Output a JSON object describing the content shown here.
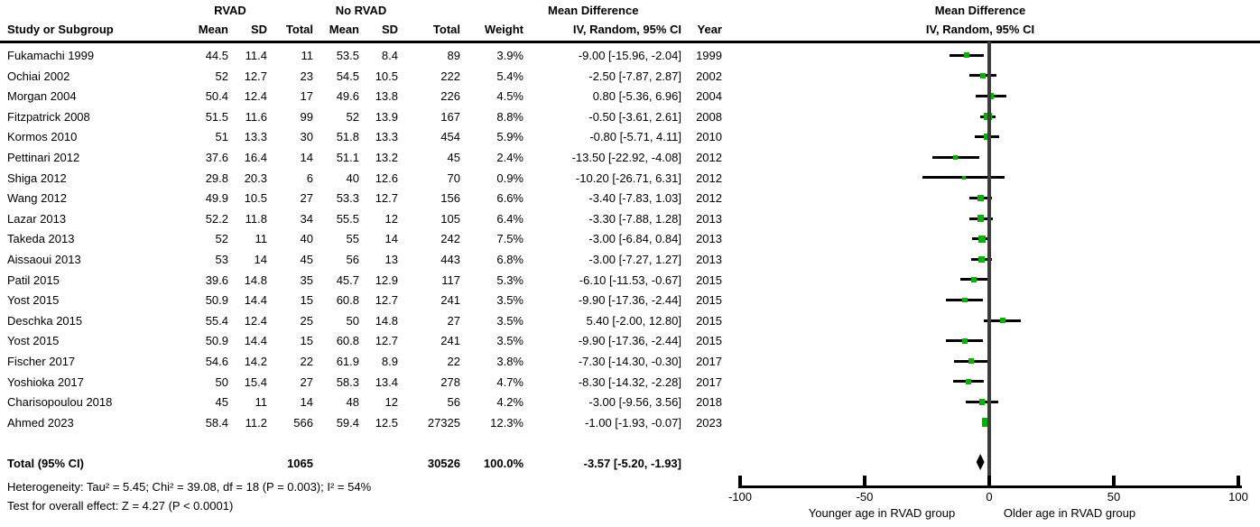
{
  "table": {
    "group1_header": "RVAD",
    "group2_header": "No RVAD",
    "effect_header_line1": "Mean Difference",
    "effect_header_line2": "IV, Random, 95% CI",
    "columns": {
      "study": "Study or Subgroup",
      "mean": "Mean",
      "sd": "SD",
      "total": "Total",
      "weight": "Weight",
      "ci": "IV, Random, 95% CI",
      "year": "Year"
    },
    "rows": [
      {
        "study": "Fukamachi 1999",
        "mean1": "44.5",
        "sd1": "11.4",
        "total1": "11",
        "mean2": "53.5",
        "sd2": "8.4",
        "total2": "89",
        "weight": "3.9%",
        "ci": "-9.00 [-15.96, -2.04]",
        "year": "1999",
        "est": -9.0,
        "lo": -15.96,
        "hi": -2.04,
        "weight_val": 3.9
      },
      {
        "study": "Ochiai 2002",
        "mean1": "52",
        "sd1": "12.7",
        "total1": "23",
        "mean2": "54.5",
        "sd2": "10.5",
        "total2": "222",
        "weight": "5.4%",
        "ci": "-2.50 [-7.87, 2.87]",
        "year": "2002",
        "est": -2.5,
        "lo": -7.87,
        "hi": 2.87,
        "weight_val": 5.4
      },
      {
        "study": "Morgan 2004",
        "mean1": "50.4",
        "sd1": "12.4",
        "total1": "17",
        "mean2": "49.6",
        "sd2": "13.8",
        "total2": "226",
        "weight": "4.5%",
        "ci": "0.80 [-5.36, 6.96]",
        "year": "2004",
        "est": 0.8,
        "lo": -5.36,
        "hi": 6.96,
        "weight_val": 4.5
      },
      {
        "study": "Fitzpatrick 2008",
        "mean1": "51.5",
        "sd1": "11.6",
        "total1": "99",
        "mean2": "52",
        "sd2": "13.9",
        "total2": "167",
        "weight": "8.8%",
        "ci": "-0.50 [-3.61, 2.61]",
        "year": "2008",
        "est": -0.5,
        "lo": -3.61,
        "hi": 2.61,
        "weight_val": 8.8
      },
      {
        "study": "Kormos 2010",
        "mean1": "51",
        "sd1": "13.3",
        "total1": "30",
        "mean2": "51.8",
        "sd2": "13.3",
        "total2": "454",
        "weight": "5.9%",
        "ci": "-0.80 [-5.71, 4.11]",
        "year": "2010",
        "est": -0.8,
        "lo": -5.71,
        "hi": 4.11,
        "weight_val": 5.9
      },
      {
        "study": "Pettinari 2012",
        "mean1": "37.6",
        "sd1": "16.4",
        "total1": "14",
        "mean2": "51.1",
        "sd2": "13.2",
        "total2": "45",
        "weight": "2.4%",
        "ci": "-13.50 [-22.92, -4.08]",
        "year": "2012",
        "est": -13.5,
        "lo": -22.92,
        "hi": -4.08,
        "weight_val": 2.4
      },
      {
        "study": "Shiga 2012",
        "mean1": "29.8",
        "sd1": "20.3",
        "total1": "6",
        "mean2": "40",
        "sd2": "12.6",
        "total2": "70",
        "weight": "0.9%",
        "ci": "-10.20 [-26.71, 6.31]",
        "year": "2012",
        "est": -10.2,
        "lo": -26.71,
        "hi": 6.31,
        "weight_val": 0.9
      },
      {
        "study": "Wang 2012",
        "mean1": "49.9",
        "sd1": "10.5",
        "total1": "27",
        "mean2": "53.3",
        "sd2": "12.7",
        "total2": "156",
        "weight": "6.6%",
        "ci": "-3.40 [-7.83, 1.03]",
        "year": "2012",
        "est": -3.4,
        "lo": -7.83,
        "hi": 1.03,
        "weight_val": 6.6
      },
      {
        "study": "Lazar 2013",
        "mean1": "52.2",
        "sd1": "11.8",
        "total1": "34",
        "mean2": "55.5",
        "sd2": "12",
        "total2": "105",
        "weight": "6.4%",
        "ci": "-3.30 [-7.88, 1.28]",
        "year": "2013",
        "est": -3.3,
        "lo": -7.88,
        "hi": 1.28,
        "weight_val": 6.4
      },
      {
        "study": "Takeda 2013",
        "mean1": "52",
        "sd1": "11",
        "total1": "40",
        "mean2": "55",
        "sd2": "14",
        "total2": "242",
        "weight": "7.5%",
        "ci": "-3.00 [-6.84, 0.84]",
        "year": "2013",
        "est": -3.0,
        "lo": -6.84,
        "hi": 0.84,
        "weight_val": 7.5
      },
      {
        "study": "Aissaoui 2013",
        "mean1": "53",
        "sd1": "14",
        "total1": "45",
        "mean2": "56",
        "sd2": "13",
        "total2": "443",
        "weight": "6.8%",
        "ci": "-3.00 [-7.27, 1.27]",
        "year": "2013",
        "est": -3.0,
        "lo": -7.27,
        "hi": 1.27,
        "weight_val": 6.8
      },
      {
        "study": "Patil 2015",
        "mean1": "39.6",
        "sd1": "14.8",
        "total1": "35",
        "mean2": "45.7",
        "sd2": "12.9",
        "total2": "117",
        "weight": "5.3%",
        "ci": "-6.10 [-11.53, -0.67]",
        "year": "2015",
        "est": -6.1,
        "lo": -11.53,
        "hi": -0.67,
        "weight_val": 5.3
      },
      {
        "study": "Yost 2015",
        "mean1": "50.9",
        "sd1": "14.4",
        "total1": "15",
        "mean2": "60.8",
        "sd2": "12.7",
        "total2": "241",
        "weight": "3.5%",
        "ci": "-9.90 [-17.36, -2.44]",
        "year": "2015",
        "est": -9.9,
        "lo": -17.36,
        "hi": -2.44,
        "weight_val": 3.5
      },
      {
        "study": "Deschka 2015",
        "mean1": "55.4",
        "sd1": "12.4",
        "total1": "25",
        "mean2": "50",
        "sd2": "14.8",
        "total2": "27",
        "weight": "3.5%",
        "ci": "5.40 [-2.00, 12.80]",
        "year": "2015",
        "est": 5.4,
        "lo": -2.0,
        "hi": 12.8,
        "weight_val": 3.5
      },
      {
        "study": "Yost 2015",
        "mean1": "50.9",
        "sd1": "14.4",
        "total1": "15",
        "mean2": "60.8",
        "sd2": "12.7",
        "total2": "241",
        "weight": "3.5%",
        "ci": "-9.90 [-17.36, -2.44]",
        "year": "2015",
        "est": -9.9,
        "lo": -17.36,
        "hi": -2.44,
        "weight_val": 3.5
      },
      {
        "study": "Fischer 2017",
        "mean1": "54.6",
        "sd1": "14.2",
        "total1": "22",
        "mean2": "61.9",
        "sd2": "8.9",
        "total2": "22",
        "weight": "3.8%",
        "ci": "-7.30 [-14.30, -0.30]",
        "year": "2017",
        "est": -7.3,
        "lo": -14.3,
        "hi": -0.3,
        "weight_val": 3.8
      },
      {
        "study": "Yoshioka 2017",
        "mean1": "50",
        "sd1": "15.4",
        "total1": "27",
        "mean2": "58.3",
        "sd2": "13.4",
        "total2": "278",
        "weight": "4.7%",
        "ci": "-8.30 [-14.32, -2.28]",
        "year": "2017",
        "est": -8.3,
        "lo": -14.32,
        "hi": -2.28,
        "weight_val": 4.7
      },
      {
        "study": "Charisopoulou 2018",
        "mean1": "45",
        "sd1": "11",
        "total1": "14",
        "mean2": "48",
        "sd2": "12",
        "total2": "56",
        "weight": "4.2%",
        "ci": "-3.00 [-9.56, 3.56]",
        "year": "2018",
        "est": -3.0,
        "lo": -9.56,
        "hi": 3.56,
        "weight_val": 4.2
      },
      {
        "study": "Ahmed 2023",
        "mean1": "58.4",
        "sd1": "11.2",
        "total1": "566",
        "mean2": "59.4",
        "sd2": "12.5",
        "total2": "27325",
        "weight": "12.3%",
        "ci": "-1.00 [-1.93, -0.07]",
        "year": "2023",
        "est": -1.0,
        "lo": -1.93,
        "hi": -0.07,
        "weight_val": 12.3
      }
    ],
    "total": {
      "label": "Total (95% CI)",
      "total1": "1065",
      "total2": "30526",
      "weight": "100.0%",
      "ci": "-3.57 [-5.20, -1.93]"
    },
    "heterogeneity": "Heterogeneity: Tau² = 5.45; Chi² = 39.08, df = 18 (P = 0.003); I² = 54%",
    "overall_effect": "Test for overall effect: Z = 4.27 (P < 0.0001)"
  },
  "plot": {
    "header_line1": "Mean Difference",
    "header_line2": "IV, Random, 95% CI",
    "marker_color": "#00b400",
    "ticks": [
      {
        "value": -100,
        "label": "-100"
      },
      {
        "value": -50,
        "label": "-50"
      },
      {
        "value": 0,
        "label": "0"
      },
      {
        "value": 50,
        "label": "50"
      },
      {
        "value": 100,
        "label": "100"
      }
    ],
    "left_caption": "Younger age in RVAD group",
    "right_caption": "Older age in RVAD group",
    "overall": {
      "est": -3.57,
      "lo": -5.2,
      "hi": -1.93
    }
  },
  "chart_data": {
    "type": "scatter",
    "subtype": "forest-plot",
    "title": "Mean Difference IV, Random, 95% CI",
    "xlim": [
      -100,
      100
    ],
    "xticks": [
      -100,
      -50,
      0,
      50,
      100
    ],
    "xlabel_left": "Younger age in RVAD group",
    "xlabel_right": "Older age in RVAD group",
    "categories": [
      "Fukamachi 1999",
      "Ochiai 2002",
      "Morgan 2004",
      "Fitzpatrick 2008",
      "Kormos 2010",
      "Pettinari 2012",
      "Shiga 2012",
      "Wang 2012",
      "Lazar 2013",
      "Takeda 2013",
      "Aissaoui 2013",
      "Patil 2015",
      "Yost 2015",
      "Deschka 2015",
      "Yost 2015",
      "Fischer 2017",
      "Yoshioka 2017",
      "Charisopoulou 2018",
      "Ahmed 2023"
    ],
    "series": [
      {
        "name": "Mean difference",
        "values": [
          -9.0,
          -2.5,
          0.8,
          -0.5,
          -0.8,
          -13.5,
          -10.2,
          -3.4,
          -3.3,
          -3.0,
          -3.0,
          -6.1,
          -9.9,
          5.4,
          -9.9,
          -7.3,
          -8.3,
          -3.0,
          -1.0
        ]
      },
      {
        "name": "CI lower",
        "values": [
          -15.96,
          -7.87,
          -5.36,
          -3.61,
          -5.71,
          -22.92,
          -26.71,
          -7.83,
          -7.88,
          -6.84,
          -7.27,
          -11.53,
          -17.36,
          -2.0,
          -17.36,
          -14.3,
          -14.32,
          -9.56,
          -1.93
        ]
      },
      {
        "name": "CI upper",
        "values": [
          -2.04,
          2.87,
          6.96,
          2.61,
          4.11,
          -4.08,
          6.31,
          1.03,
          1.28,
          0.84,
          1.27,
          -0.67,
          -2.44,
          12.8,
          -2.44,
          -0.3,
          -2.28,
          3.56,
          -0.07
        ]
      },
      {
        "name": "Weight %",
        "values": [
          3.9,
          5.4,
          4.5,
          8.8,
          5.9,
          2.4,
          0.9,
          6.6,
          6.4,
          7.5,
          6.8,
          5.3,
          3.5,
          3.5,
          3.5,
          3.8,
          4.7,
          4.2,
          12.3
        ]
      }
    ],
    "overall": {
      "label": "Total (95% CI)",
      "value": -3.57,
      "ci": [
        -5.2,
        -1.93
      ]
    },
    "legend_position": "none",
    "grid": false
  }
}
